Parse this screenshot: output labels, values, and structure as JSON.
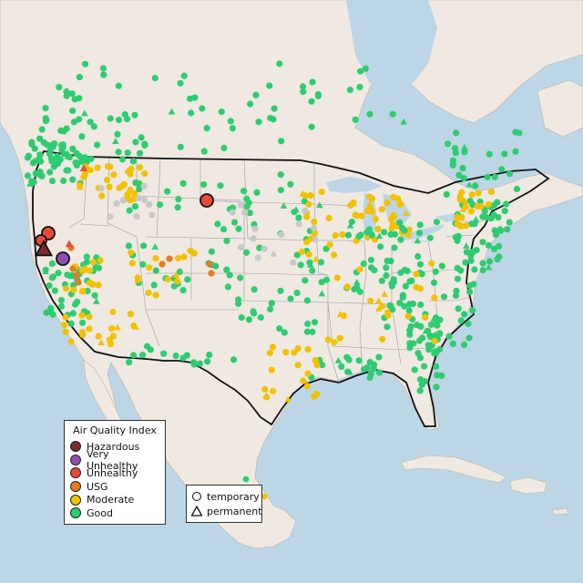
{
  "legend": {
    "title": "Air Quality Index",
    "categories": [
      {
        "label": "Hazardous",
        "color": "#7e2b2b"
      },
      {
        "label": "Very Unhealthy",
        "color": "#8f4fb0"
      },
      {
        "label": "Unhealthy",
        "color": "#e84b3a"
      },
      {
        "label": "USG",
        "color": "#e8791e"
      },
      {
        "label": "Moderate",
        "color": "#f2c100"
      },
      {
        "label": "Good",
        "color": "#2ecc71"
      }
    ]
  },
  "type_legend": {
    "temporary": "temporary",
    "permanent": "permanent"
  },
  "colors": {
    "water": "#bcd6e6",
    "land": "#efe9e2",
    "no_data": "#c8c8c8",
    "border": "#111111"
  }
}
